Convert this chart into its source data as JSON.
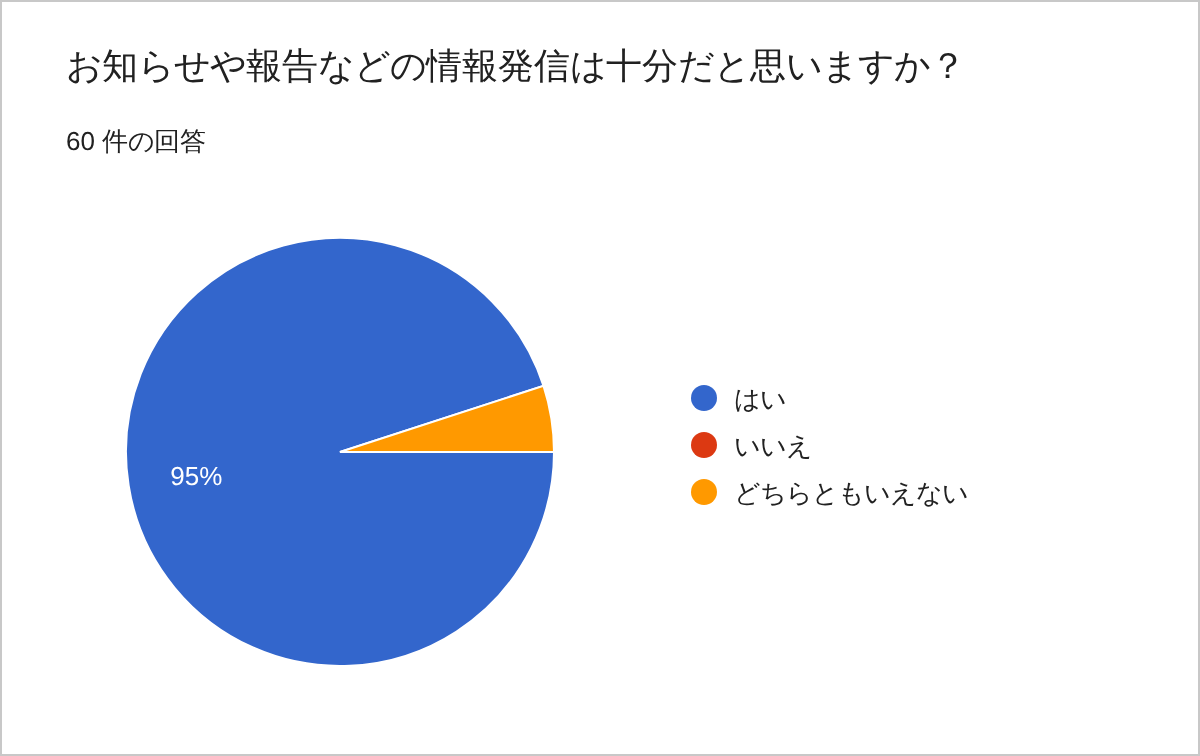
{
  "chart_data": {
    "type": "pie",
    "title": "お知らせや報告などの情報発信は十分だと思いますか？",
    "subtitle": "60 件の回答",
    "categories": [
      "はい",
      "いいえ",
      "どちらともいえない"
    ],
    "values": [
      95,
      0,
      5
    ],
    "colors": [
      "#3366cc",
      "#dc3912",
      "#ff9900"
    ],
    "value_labels": [
      "95%",
      null,
      null
    ],
    "legend": "right"
  }
}
